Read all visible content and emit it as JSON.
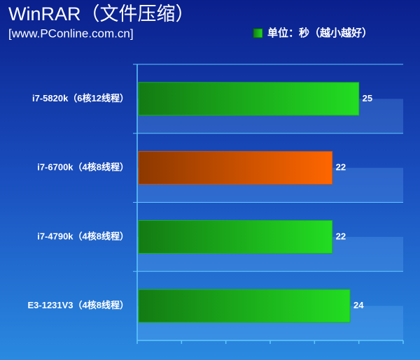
{
  "chart_data": {
    "type": "bar",
    "orientation": "horizontal",
    "title": "WinRAR（文件压缩）",
    "subtitle": "[www.PConline.com.cn]",
    "categories": [
      "i7-5820k（6核12线程）",
      "i7-6700k（4核8线程）",
      "i7-4790k（4核8线程）",
      "E3-1231V3（4核8线程）"
    ],
    "series": [
      {
        "name": "单位：秒（越小越好）",
        "color": "#22dd22",
        "values": [
          25,
          22,
          22,
          24
        ],
        "colors": [
          "#22dd22",
          "#ff6600",
          "#22dd22",
          "#22dd22"
        ]
      }
    ],
    "xlim": [
      0,
      30
    ],
    "xticks": [
      0,
      5,
      10,
      15,
      20,
      25,
      30
    ],
    "legend": "top-right",
    "grid": true
  }
}
